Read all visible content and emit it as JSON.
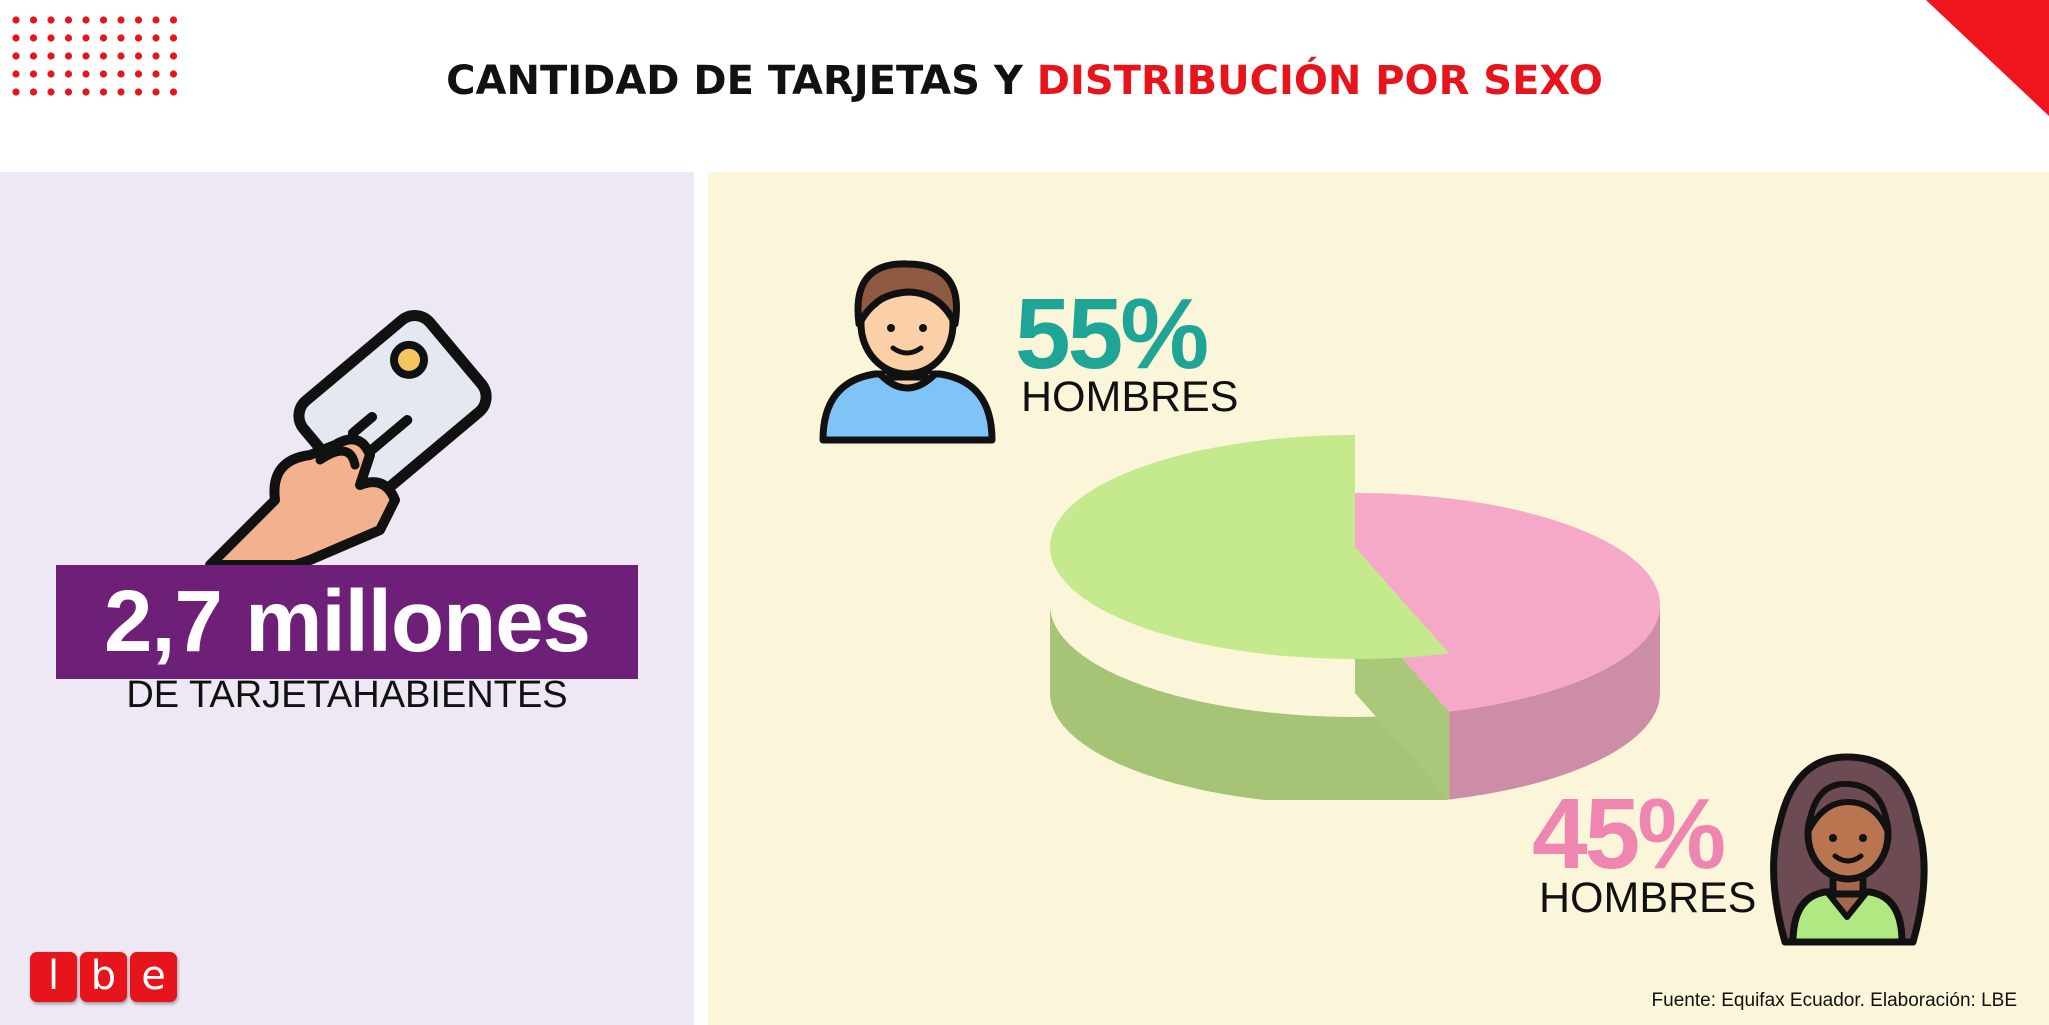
{
  "title": {
    "part1": "CANTIDAD DE TARJETAS Y ",
    "part2": "DISTRIBUCIÓN POR SEXO"
  },
  "summary": {
    "value": "2,7 millones",
    "label": "DE TARJETAHABIENTES"
  },
  "chart_data": {
    "type": "pie",
    "style": "3d",
    "slices": [
      {
        "label": "HOMBRES",
        "value": 55,
        "display": "55%",
        "color": "#c5e98d",
        "text_color": "#1ea596"
      },
      {
        "label": "HOMBRES",
        "value": 45,
        "display": "45%",
        "color": "#f5a8c7",
        "text_color": "#ef86b1"
      }
    ]
  },
  "source": "Fuente: Equifax Ecuador. Elaboración: LBE",
  "logo": {
    "letters": [
      "l",
      "b",
      "e"
    ]
  },
  "colors": {
    "accent": "#e8141c",
    "banner": "#6e1f77",
    "left_panel": "#ede8f3",
    "right_panel": "#fbf5d9"
  },
  "icons": [
    "dot-grid-decoration",
    "corner-triangle",
    "hand-card-icon",
    "man-avatar-icon",
    "woman-avatar-icon"
  ]
}
